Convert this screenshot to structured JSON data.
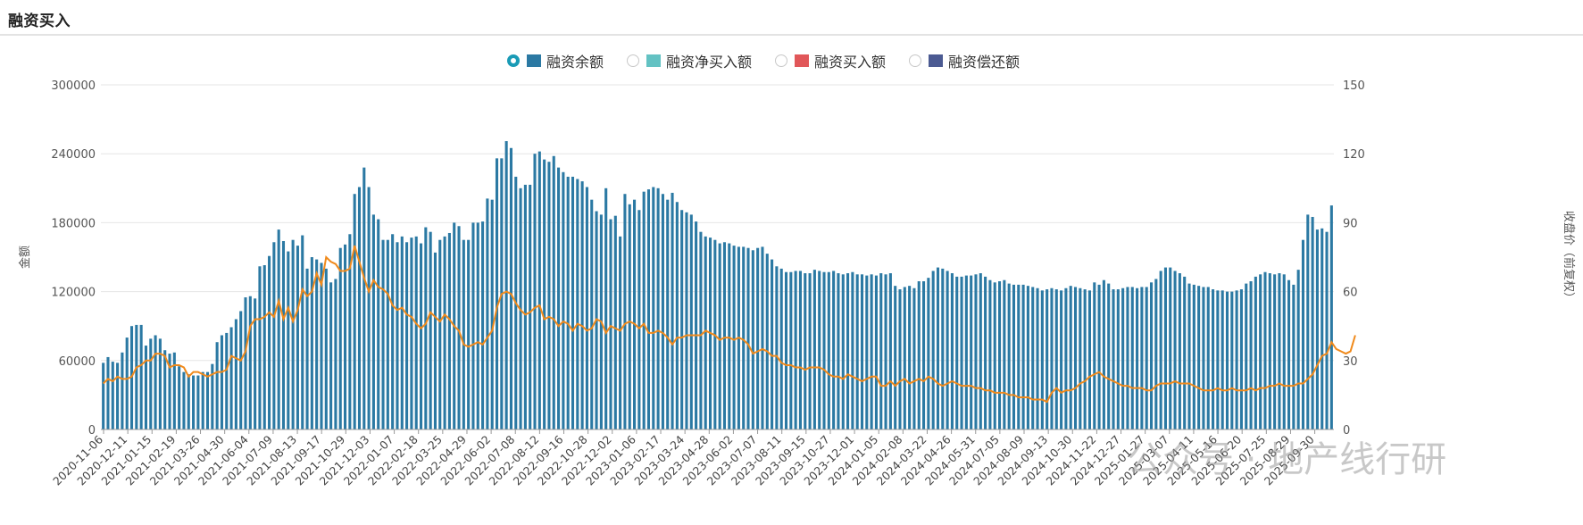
{
  "header": {
    "title": "融资买入"
  },
  "legend": [
    {
      "label": "融资余额",
      "color": "#2b79a3",
      "selected": true
    },
    {
      "label": "融资净买入额",
      "color": "#63c2c3",
      "selected": false
    },
    {
      "label": "融资买入额",
      "color": "#e15759",
      "selected": false
    },
    {
      "label": "融资偿还额",
      "color": "#4b5a92",
      "selected": false
    }
  ],
  "watermark": "公众号 · 地产线行研",
  "chart_data": {
    "type": "bar",
    "title": "",
    "ylabel": "金额",
    "y2label": "收盘价（前复权）",
    "ylim": [
      0,
      300000
    ],
    "y2lim": [
      0,
      150
    ],
    "yticks": [
      "300000",
      "240000",
      "180000",
      "120000",
      "60000",
      "0"
    ],
    "y2ticks": [
      "150",
      "120",
      "90",
      "60",
      "30",
      "0"
    ],
    "grid": true,
    "legend_position": "top-center",
    "bar_color": "#2b79a3",
    "line_color": "#f08a1c",
    "x_tick_labels": [
      "2020-11-06",
      "2020-12-11",
      "2021-01-15",
      "2021-02-19",
      "2021-03-26",
      "2021-04-30",
      "2021-06-04",
      "2021-07-09",
      "2021-08-13",
      "2021-09-17",
      "2021-10-29",
      "2021-12-03",
      "2022-01-07",
      "2022-02-18",
      "2022-03-25",
      "2022-04-29",
      "2022-06-02",
      "2022-07-08",
      "2022-08-12",
      "2022-09-16",
      "2022-10-28",
      "2022-12-02",
      "2023-01-06",
      "2023-02-17",
      "2023-03-24",
      "2023-04-28",
      "2023-06-02",
      "2023-07-07",
      "2023-08-11",
      "2023-09-15",
      "2023-10-27",
      "2023-12-01",
      "2024-01-05",
      "2024-02-08",
      "2024-03-22",
      "2024-04-26",
      "2024-05-31",
      "2024-07-05",
      "2024-08-09",
      "2024-09-13",
      "2024-10-30",
      "2024-11-22",
      "2024-12-27",
      "2025-01-27",
      "2025-03-07",
      "2025-04-11",
      "2025-05-16",
      "2025-06-20",
      "2025-07-25",
      "2025-08-29",
      "2025-09-30"
    ],
    "series": [
      {
        "name": "融资余额",
        "type": "bar",
        "values": [
          58000,
          63000,
          59000,
          58000,
          67000,
          80000,
          90000,
          91000,
          91000,
          73000,
          79000,
          82000,
          79000,
          69000,
          66000,
          67000,
          55000,
          50000,
          48000,
          47000,
          47000,
          50000,
          50000,
          57000,
          76000,
          82000,
          84000,
          89000,
          96000,
          103000,
          115000,
          116000,
          114000,
          142000,
          143000,
          151000,
          163000,
          174000,
          164000,
          155000,
          165000,
          160000,
          169000,
          140000,
          150000,
          148000,
          145000,
          140000,
          128000,
          131000,
          158000,
          161000,
          170000,
          205000,
          211000,
          228000,
          211000,
          187000,
          183000,
          165000,
          165000,
          170000,
          163000,
          168000,
          163000,
          167000,
          168000,
          162000,
          176000,
          172000,
          154000,
          165000,
          168000,
          171000,
          180000,
          177000,
          165000,
          165000,
          180000,
          180000,
          181000,
          201000,
          200000,
          236000,
          236000,
          251000,
          245000,
          220000,
          210000,
          213000,
          213000,
          240000,
          242000,
          235000,
          233000,
          238000,
          228000,
          224000,
          220000,
          220000,
          218000,
          216000,
          211000,
          200000,
          190000,
          187000,
          210000,
          183000,
          186000,
          168000,
          205000,
          196000,
          200000,
          191000,
          207000,
          209000,
          211000,
          210000,
          205000,
          200000,
          206000,
          198000,
          191000,
          189000,
          187000,
          181000,
          172000,
          168000,
          167000,
          165000,
          162000,
          163000,
          162000,
          160000,
          159000,
          159000,
          158000,
          156000,
          158000,
          159000,
          153000,
          148000,
          142000,
          140000,
          137000,
          137000,
          138000,
          138000,
          136000,
          136000,
          139000,
          138000,
          137000,
          137000,
          138000,
          136000,
          135000,
          136000,
          137000,
          135000,
          135000,
          134000,
          135000,
          134000,
          136000,
          135000,
          136000,
          125000,
          122000,
          124000,
          125000,
          123000,
          129000,
          129000,
          132000,
          138000,
          141000,
          140000,
          138000,
          136000,
          133000,
          133000,
          134000,
          134000,
          135000,
          136000,
          133000,
          130000,
          128000,
          129000,
          130000,
          127000,
          126000,
          126000,
          126000,
          125000,
          124000,
          123000,
          121000,
          122000,
          123000,
          122000,
          121000,
          123000,
          125000,
          124000,
          123000,
          122000,
          121000,
          128000,
          126000,
          130000,
          127000,
          122000,
          122000,
          123000,
          124000,
          124000,
          123000,
          124000,
          124000,
          128000,
          131000,
          138000,
          141000,
          141000,
          138000,
          136000,
          133000,
          127000,
          126000,
          125000,
          124000,
          124000,
          122000,
          121000,
          121000,
          120000,
          120000,
          121000,
          122000,
          127000,
          129000,
          133000,
          135000,
          137000,
          136000,
          135000,
          136000,
          135000,
          130000,
          126000,
          139000,
          165000,
          187000,
          185000,
          174000,
          175000,
          172000,
          195000
        ]
      },
      {
        "name": "收盘价（前复权）",
        "type": "line",
        "axis": "right",
        "values": [
          20,
          22,
          21,
          23,
          22,
          22,
          23,
          27,
          28,
          30,
          30,
          33,
          33,
          32,
          27,
          28,
          28,
          27,
          23,
          25,
          25,
          24,
          23,
          24,
          25,
          25,
          26,
          32,
          31,
          30,
          34,
          45,
          48,
          48,
          49,
          51,
          49,
          56,
          48,
          53,
          47,
          52,
          61,
          58,
          60,
          68,
          63,
          75,
          73,
          72,
          69,
          69,
          70,
          80,
          73,
          66,
          60,
          65,
          62,
          61,
          59,
          54,
          52,
          53,
          50,
          49,
          46,
          44,
          46,
          51,
          49,
          47,
          50,
          48,
          45,
          43,
          37,
          36,
          37,
          38,
          37,
          40,
          43,
          53,
          59,
          60,
          59,
          55,
          52,
          50,
          51,
          53,
          54,
          48,
          49,
          48,
          45,
          47,
          46,
          43,
          46,
          45,
          43,
          44,
          48,
          47,
          42,
          45,
          44,
          43,
          46,
          47,
          46,
          44,
          46,
          42,
          42,
          43,
          42,
          40,
          37,
          40,
          40,
          41,
          41,
          41,
          41,
          43,
          42,
          41,
          39,
          40,
          40,
          39,
          40,
          39,
          37,
          33,
          34,
          35,
          34,
          32,
          32,
          29,
          28,
          28,
          27,
          27,
          26,
          27,
          27,
          27,
          26,
          24,
          23,
          23,
          22,
          24,
          23,
          22,
          21,
          22,
          23,
          23,
          19,
          19,
          21,
          19,
          21,
          22,
          20,
          21,
          22,
          21,
          23,
          22,
          20,
          19,
          20,
          21,
          20,
          19,
          19,
          19,
          18,
          18,
          17,
          17,
          16,
          16,
          16,
          15,
          15,
          14,
          14,
          14,
          13,
          13,
          13,
          12,
          16,
          18,
          16,
          17,
          17,
          18,
          20,
          21,
          23,
          24,
          25,
          23,
          22,
          21,
          20,
          19,
          19,
          18,
          18,
          18,
          17,
          17,
          19,
          20,
          20,
          20,
          21,
          20,
          20,
          20,
          19,
          18,
          17,
          17,
          17,
          18,
          17,
          17,
          18,
          17,
          17,
          17,
          18,
          17,
          18,
          18,
          19,
          19,
          20,
          19,
          19,
          19,
          20,
          20,
          22,
          24,
          28,
          32,
          33,
          38,
          35,
          34,
          33,
          34,
          41
        ]
      }
    ]
  }
}
